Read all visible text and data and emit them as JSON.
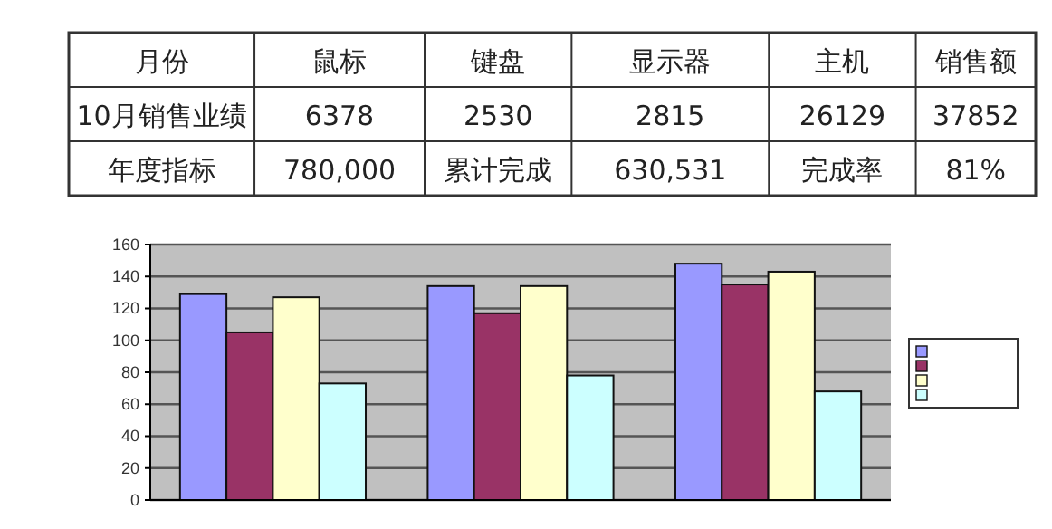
{
  "chart_data": [
    {
      "type": "other",
      "categories": [
        "月份",
        "鼠标",
        "键盘",
        "显示器",
        "主机",
        "销售额"
      ],
      "annotations": [
        "10月销售业绩",
        "6378",
        "2530",
        "2815",
        "26129",
        "37852",
        "年度指标",
        "780,000",
        "累计完成",
        "630,531",
        "完成率",
        "81%"
      ]
    },
    {
      "type": "bar",
      "categories": [
        null,
        null,
        null
      ],
      "series": [
        {
          "color": "#9999ff",
          "values": [
            129,
            134,
            148
          ]
        },
        {
          "color": "#993366",
          "values": [
            105,
            117,
            135
          ]
        },
        {
          "color": "#ffffcc",
          "values": [
            127,
            134,
            143
          ]
        },
        {
          "color": "#ccffff",
          "values": [
            73,
            78,
            68
          ]
        }
      ],
      "ylim": [
        0,
        160
      ],
      "yticks": [
        0,
        20,
        40,
        60,
        80,
        100,
        120,
        140,
        160
      ],
      "grid": "y"
    }
  ]
}
